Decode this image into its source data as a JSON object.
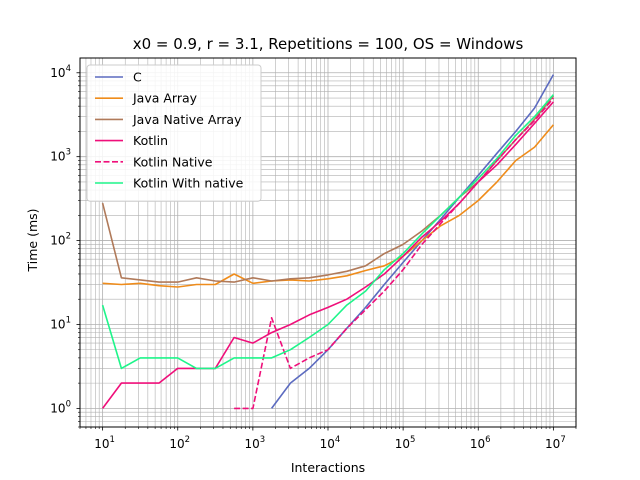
{
  "chart_data": {
    "type": "line",
    "title": "x0 = 0.9, r = 3.1, Repetitions = 100, OS = Windows",
    "xlabel": "Interactions",
    "ylabel": "Time (ms)",
    "xscale": "log",
    "yscale": "log",
    "xlim": [
      5,
      20000000
    ],
    "ylim": [
      0.6,
      15000
    ],
    "grid": true,
    "legend_position": "top-left",
    "x_ticks": [
      {
        "value": 10,
        "base": "10",
        "exp": "1"
      },
      {
        "value": 100,
        "base": "10",
        "exp": "2"
      },
      {
        "value": 1000,
        "base": "10",
        "exp": "3"
      },
      {
        "value": 10000,
        "base": "10",
        "exp": "4"
      },
      {
        "value": 100000,
        "base": "10",
        "exp": "5"
      },
      {
        "value": 1000000,
        "base": "10",
        "exp": "6"
      },
      {
        "value": 10000000,
        "base": "10",
        "exp": "7"
      }
    ],
    "y_ticks": [
      {
        "value": 1,
        "base": "10",
        "exp": "0"
      },
      {
        "value": 10,
        "base": "10",
        "exp": "1"
      },
      {
        "value": 100,
        "base": "10",
        "exp": "2"
      },
      {
        "value": 1000,
        "base": "10",
        "exp": "3"
      },
      {
        "value": 10000,
        "base": "10",
        "exp": "4"
      }
    ],
    "series": [
      {
        "name": "C",
        "color": "#5c6bc0",
        "dash": "solid",
        "points": [
          [
            1778,
            1
          ],
          [
            3162,
            2
          ],
          [
            5623,
            3
          ],
          [
            10000,
            5
          ],
          [
            17783,
            9
          ],
          [
            31623,
            16
          ],
          [
            56234,
            30
          ],
          [
            100000,
            55
          ],
          [
            177828,
            100
          ],
          [
            316228,
            180
          ],
          [
            562341,
            330
          ],
          [
            1000000,
            600
          ],
          [
            1778279,
            1100
          ],
          [
            3162278,
            2000
          ],
          [
            5623413,
            3800
          ],
          [
            10000000,
            9500
          ]
        ]
      },
      {
        "name": "Java Array",
        "color": "#ef8c1b",
        "dash": "solid",
        "points": [
          [
            10,
            31
          ],
          [
            17.78,
            30
          ],
          [
            31.62,
            31
          ],
          [
            56.23,
            29
          ],
          [
            100,
            28
          ],
          [
            177.8,
            30
          ],
          [
            316.2,
            30
          ],
          [
            562.3,
            40
          ],
          [
            1000,
            31
          ],
          [
            1778,
            33
          ],
          [
            3162,
            34
          ],
          [
            5623,
            33
          ],
          [
            10000,
            35
          ],
          [
            17783,
            38
          ],
          [
            31623,
            44
          ],
          [
            56234,
            50
          ],
          [
            100000,
            65
          ],
          [
            177828,
            100
          ],
          [
            316228,
            150
          ],
          [
            562341,
            200
          ],
          [
            1000000,
            300
          ],
          [
            1778279,
            500
          ],
          [
            3162278,
            900
          ],
          [
            5623413,
            1300
          ],
          [
            10000000,
            2400
          ]
        ]
      },
      {
        "name": "Java Native Array",
        "color": "#b07a5a",
        "dash": "solid",
        "points": [
          [
            10,
            280
          ],
          [
            17.78,
            36
          ],
          [
            31.62,
            34
          ],
          [
            56.23,
            32
          ],
          [
            100,
            32
          ],
          [
            177.8,
            36
          ],
          [
            316.2,
            33
          ],
          [
            562.3,
            32
          ],
          [
            1000,
            36
          ],
          [
            1778,
            33
          ],
          [
            3162,
            35
          ],
          [
            5623,
            36
          ],
          [
            10000,
            39
          ],
          [
            17783,
            43
          ],
          [
            31623,
            50
          ],
          [
            56234,
            70
          ],
          [
            100000,
            90
          ],
          [
            177828,
            130
          ],
          [
            316228,
            200
          ],
          [
            562341,
            330
          ],
          [
            1000000,
            500
          ],
          [
            1778279,
            900
          ],
          [
            3162278,
            1600
          ],
          [
            5623413,
            2800
          ],
          [
            10000000,
            5300
          ]
        ]
      },
      {
        "name": "Kotlin",
        "color": "#ef0f7a",
        "dash": "solid",
        "points": [
          [
            10,
            1
          ],
          [
            17.78,
            2
          ],
          [
            31.62,
            2
          ],
          [
            56.23,
            2
          ],
          [
            100,
            3
          ],
          [
            177.8,
            3
          ],
          [
            316.2,
            3
          ],
          [
            562.3,
            7
          ],
          [
            1000,
            6
          ],
          [
            1778,
            8
          ],
          [
            3162,
            10
          ],
          [
            5623,
            13
          ],
          [
            10000,
            16
          ],
          [
            17783,
            20
          ],
          [
            31623,
            28
          ],
          [
            56234,
            40
          ],
          [
            100000,
            65
          ],
          [
            177828,
            110
          ],
          [
            316228,
            170
          ],
          [
            562341,
            280
          ],
          [
            1000000,
            500
          ],
          [
            1778279,
            800
          ],
          [
            3162278,
            1400
          ],
          [
            5623413,
            2500
          ],
          [
            10000000,
            4500
          ]
        ]
      },
      {
        "name": "Kotlin Native",
        "color": "#ef0f7a",
        "dash": "dashed",
        "points": [
          [
            562.3,
            1
          ],
          [
            1000,
            1
          ],
          [
            1778,
            12
          ],
          [
            3162,
            3
          ],
          [
            5623,
            4
          ],
          [
            10000,
            5
          ],
          [
            17783,
            9
          ],
          [
            31623,
            15
          ],
          [
            56234,
            25
          ],
          [
            100000,
            45
          ],
          [
            177828,
            90
          ],
          [
            316228,
            160
          ],
          [
            562341,
            280
          ],
          [
            1000000,
            500
          ],
          [
            1778279,
            900
          ],
          [
            3162278,
            1600
          ],
          [
            5623413,
            2700
          ],
          [
            10000000,
            5000
          ]
        ]
      },
      {
        "name": "Kotlin With native",
        "color": "#1ef58a",
        "dash": "solid",
        "points": [
          [
            10,
            17
          ],
          [
            17.78,
            3
          ],
          [
            31.62,
            4
          ],
          [
            56.23,
            4
          ],
          [
            100,
            4
          ],
          [
            177.8,
            3
          ],
          [
            316.2,
            3
          ],
          [
            562.3,
            4
          ],
          [
            1000,
            4
          ],
          [
            1778,
            4
          ],
          [
            3162,
            5
          ],
          [
            5623,
            7
          ],
          [
            10000,
            10
          ],
          [
            17783,
            17
          ],
          [
            31623,
            25
          ],
          [
            56234,
            45
          ],
          [
            100000,
            70
          ],
          [
            177828,
            120
          ],
          [
            316228,
            200
          ],
          [
            562341,
            330
          ],
          [
            1000000,
            550
          ],
          [
            1778279,
            950
          ],
          [
            3162278,
            1800
          ],
          [
            5623413,
            3000
          ],
          [
            10000000,
            5500
          ]
        ]
      }
    ]
  }
}
